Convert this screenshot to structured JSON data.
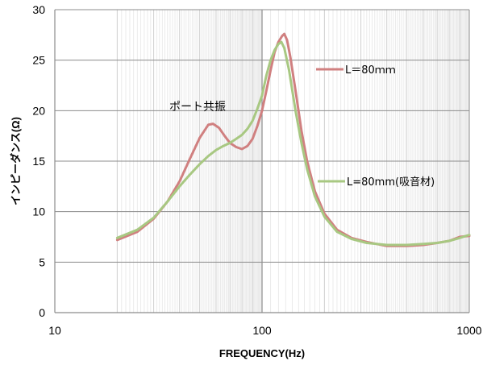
{
  "chart_data": {
    "type": "line",
    "title": "",
    "xlabel": "FREQUENCY(Hz)",
    "ylabel": "インピーダンス(Ω)",
    "x_scale": "log",
    "xlim": [
      10,
      1000
    ],
    "ylim": [
      0,
      30
    ],
    "x_ticks": [
      "10",
      "100",
      "1000"
    ],
    "y_ticks": [
      "0",
      "5",
      "10",
      "15",
      "20",
      "25",
      "30"
    ],
    "grid": true,
    "legend_placement": "inline labels at right",
    "annotations": [
      {
        "text": "ポート共振"
      }
    ],
    "series": [
      {
        "name": "L＝80ｍｍ",
        "color": "#d08080",
        "points": [
          [
            20,
            7.2
          ],
          [
            25,
            8.0
          ],
          [
            30,
            9.3
          ],
          [
            35,
            11.0
          ],
          [
            40,
            13.0
          ],
          [
            45,
            15.3
          ],
          [
            50,
            17.3
          ],
          [
            55,
            18.6
          ],
          [
            58,
            18.7
          ],
          [
            62,
            18.3
          ],
          [
            66,
            17.5
          ],
          [
            70,
            16.8
          ],
          [
            75,
            16.4
          ],
          [
            80,
            16.2
          ],
          [
            85,
            16.5
          ],
          [
            90,
            17.2
          ],
          [
            95,
            18.5
          ],
          [
            100,
            20.0
          ],
          [
            105,
            22.0
          ],
          [
            110,
            24.0
          ],
          [
            115,
            25.8
          ],
          [
            120,
            26.8
          ],
          [
            125,
            27.4
          ],
          [
            128,
            27.6
          ],
          [
            132,
            27.0
          ],
          [
            137,
            25.3
          ],
          [
            145,
            22.0
          ],
          [
            155,
            18.0
          ],
          [
            165,
            15.0
          ],
          [
            180,
            12.0
          ],
          [
            200,
            9.8
          ],
          [
            230,
            8.2
          ],
          [
            270,
            7.4
          ],
          [
            320,
            7.0
          ],
          [
            400,
            6.6
          ],
          [
            500,
            6.6
          ],
          [
            600,
            6.7
          ],
          [
            700,
            6.9
          ],
          [
            800,
            7.1
          ],
          [
            900,
            7.5
          ],
          [
            1000,
            7.6
          ]
        ]
      },
      {
        "name": "L=80mm(吸音材)",
        "color": "#a8c882",
        "points": [
          [
            20,
            7.4
          ],
          [
            25,
            8.2
          ],
          [
            30,
            9.4
          ],
          [
            35,
            11.0
          ],
          [
            40,
            12.5
          ],
          [
            45,
            13.7
          ],
          [
            50,
            14.7
          ],
          [
            55,
            15.5
          ],
          [
            60,
            16.1
          ],
          [
            65,
            16.5
          ],
          [
            70,
            16.8
          ],
          [
            75,
            17.2
          ],
          [
            80,
            17.6
          ],
          [
            85,
            18.2
          ],
          [
            90,
            19.0
          ],
          [
            95,
            20.2
          ],
          [
            100,
            21.5
          ],
          [
            105,
            23.5
          ],
          [
            110,
            25.0
          ],
          [
            115,
            26.0
          ],
          [
            120,
            26.6
          ],
          [
            124,
            26.8
          ],
          [
            128,
            26.2
          ],
          [
            135,
            24.0
          ],
          [
            145,
            20.0
          ],
          [
            155,
            16.8
          ],
          [
            165,
            14.2
          ],
          [
            180,
            11.5
          ],
          [
            200,
            9.5
          ],
          [
            230,
            8.0
          ],
          [
            270,
            7.3
          ],
          [
            320,
            6.9
          ],
          [
            400,
            6.7
          ],
          [
            500,
            6.7
          ],
          [
            600,
            6.8
          ],
          [
            700,
            6.9
          ],
          [
            800,
            7.1
          ],
          [
            900,
            7.4
          ],
          [
            1000,
            7.7
          ]
        ]
      }
    ]
  }
}
